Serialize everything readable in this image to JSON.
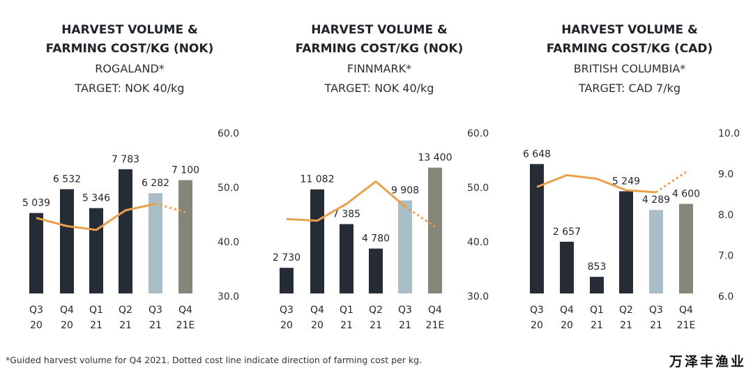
{
  "footnote": "*Guided harvest volume for Q4 2021. Dotted cost line indicate direction of farming cost per kg.",
  "logo_text": "万泽丰渔业",
  "colors": {
    "bar_dark": "#262c35",
    "bar_light": "#a9bec6",
    "bar_estimate": "#858679",
    "cost_line": "#e8a04c"
  },
  "chart_data": [
    {
      "type": "bar",
      "title_lines": [
        "HARVEST VOLUME &",
        "FARMING COST/KG (NOK)"
      ],
      "region": "ROGALAND*",
      "target": "TARGET: NOK 40/kg",
      "categories": [
        [
          "Q3",
          "20"
        ],
        [
          "Q4",
          "20"
        ],
        [
          "Q1",
          "21"
        ],
        [
          "Q2",
          "21"
        ],
        [
          "Q3",
          "21"
        ],
        [
          "Q4",
          "21E"
        ]
      ],
      "values": [
        5039,
        6532,
        5346,
        7783,
        6282,
        7100
      ],
      "value_labels": [
        "5 039",
        "6 532",
        "5 346",
        "7 783",
        "6 282",
        "7 100"
      ],
      "bar_styles": [
        "dark",
        "dark",
        "dark",
        "dark",
        "light",
        "estimate"
      ],
      "volume_range": [
        0,
        10000
      ],
      "cost_series": {
        "solid": [
          44.4,
          42.9,
          42.2,
          45.8,
          47.0
        ],
        "dotted": [
          47.0,
          45.5
        ]
      },
      "cost_axis": {
        "ticks": [
          "30.0",
          "40.0",
          "50.0",
          "60.0"
        ],
        "range": [
          30,
          60
        ]
      }
    },
    {
      "type": "bar",
      "title_lines": [
        "HARVEST VOLUME &",
        "FARMING COST/KG (NOK)"
      ],
      "region": "FINNMARK*",
      "target": "TARGET: NOK 40/kg",
      "categories": [
        [
          "Q3",
          "20"
        ],
        [
          "Q4",
          "20"
        ],
        [
          "Q1",
          "21"
        ],
        [
          "Q2",
          "21"
        ],
        [
          "Q3",
          "21"
        ],
        [
          "Q4",
          "21E"
        ]
      ],
      "values": [
        2730,
        11082,
        7385,
        4780,
        9908,
        13400
      ],
      "value_labels": [
        "2 730",
        "11 082",
        "7 385",
        "4 780",
        "9 908",
        "13 400"
      ],
      "bar_styles": [
        "dark",
        "dark",
        "dark",
        "dark",
        "light",
        "estimate"
      ],
      "volume_range": [
        0,
        17000
      ],
      "cost_series": {
        "solid": [
          44.2,
          43.9,
          47.0,
          51.1,
          46.5
        ],
        "dotted": [
          46.5,
          42.8
        ]
      },
      "cost_axis": {
        "ticks": [
          "30.0",
          "40.0",
          "50.0",
          "60.0"
        ],
        "range": [
          30,
          60
        ]
      }
    },
    {
      "type": "bar",
      "title_lines": [
        "HARVEST VOLUME &",
        "FARMING COST/KG (CAD)"
      ],
      "region": "BRITISH COLUMBIA*",
      "target": "TARGET: CAD 7/kg",
      "categories": [
        [
          "Q3",
          "20"
        ],
        [
          "Q4",
          "20"
        ],
        [
          "Q1",
          "21"
        ],
        [
          "Q2",
          "21"
        ],
        [
          "Q3",
          "21"
        ],
        [
          "Q4",
          "21E"
        ]
      ],
      "values": [
        6648,
        2657,
        853,
        5249,
        4289,
        4600
      ],
      "value_labels": [
        "6 648",
        "2 657",
        "853",
        "5 249",
        "4 289",
        "4 600"
      ],
      "bar_styles": [
        "dark",
        "dark",
        "dark",
        "dark",
        "light",
        "estimate"
      ],
      "volume_range": [
        0,
        8200
      ],
      "cost_series": {
        "solid": [
          8.68,
          8.97,
          8.88,
          8.6,
          8.55
        ],
        "dotted": [
          8.55,
          9.05
        ]
      },
      "cost_axis": {
        "ticks": [
          "6.0",
          "7.0",
          "8.0",
          "9.0",
          "10.0"
        ],
        "range": [
          6,
          10
        ]
      }
    }
  ]
}
